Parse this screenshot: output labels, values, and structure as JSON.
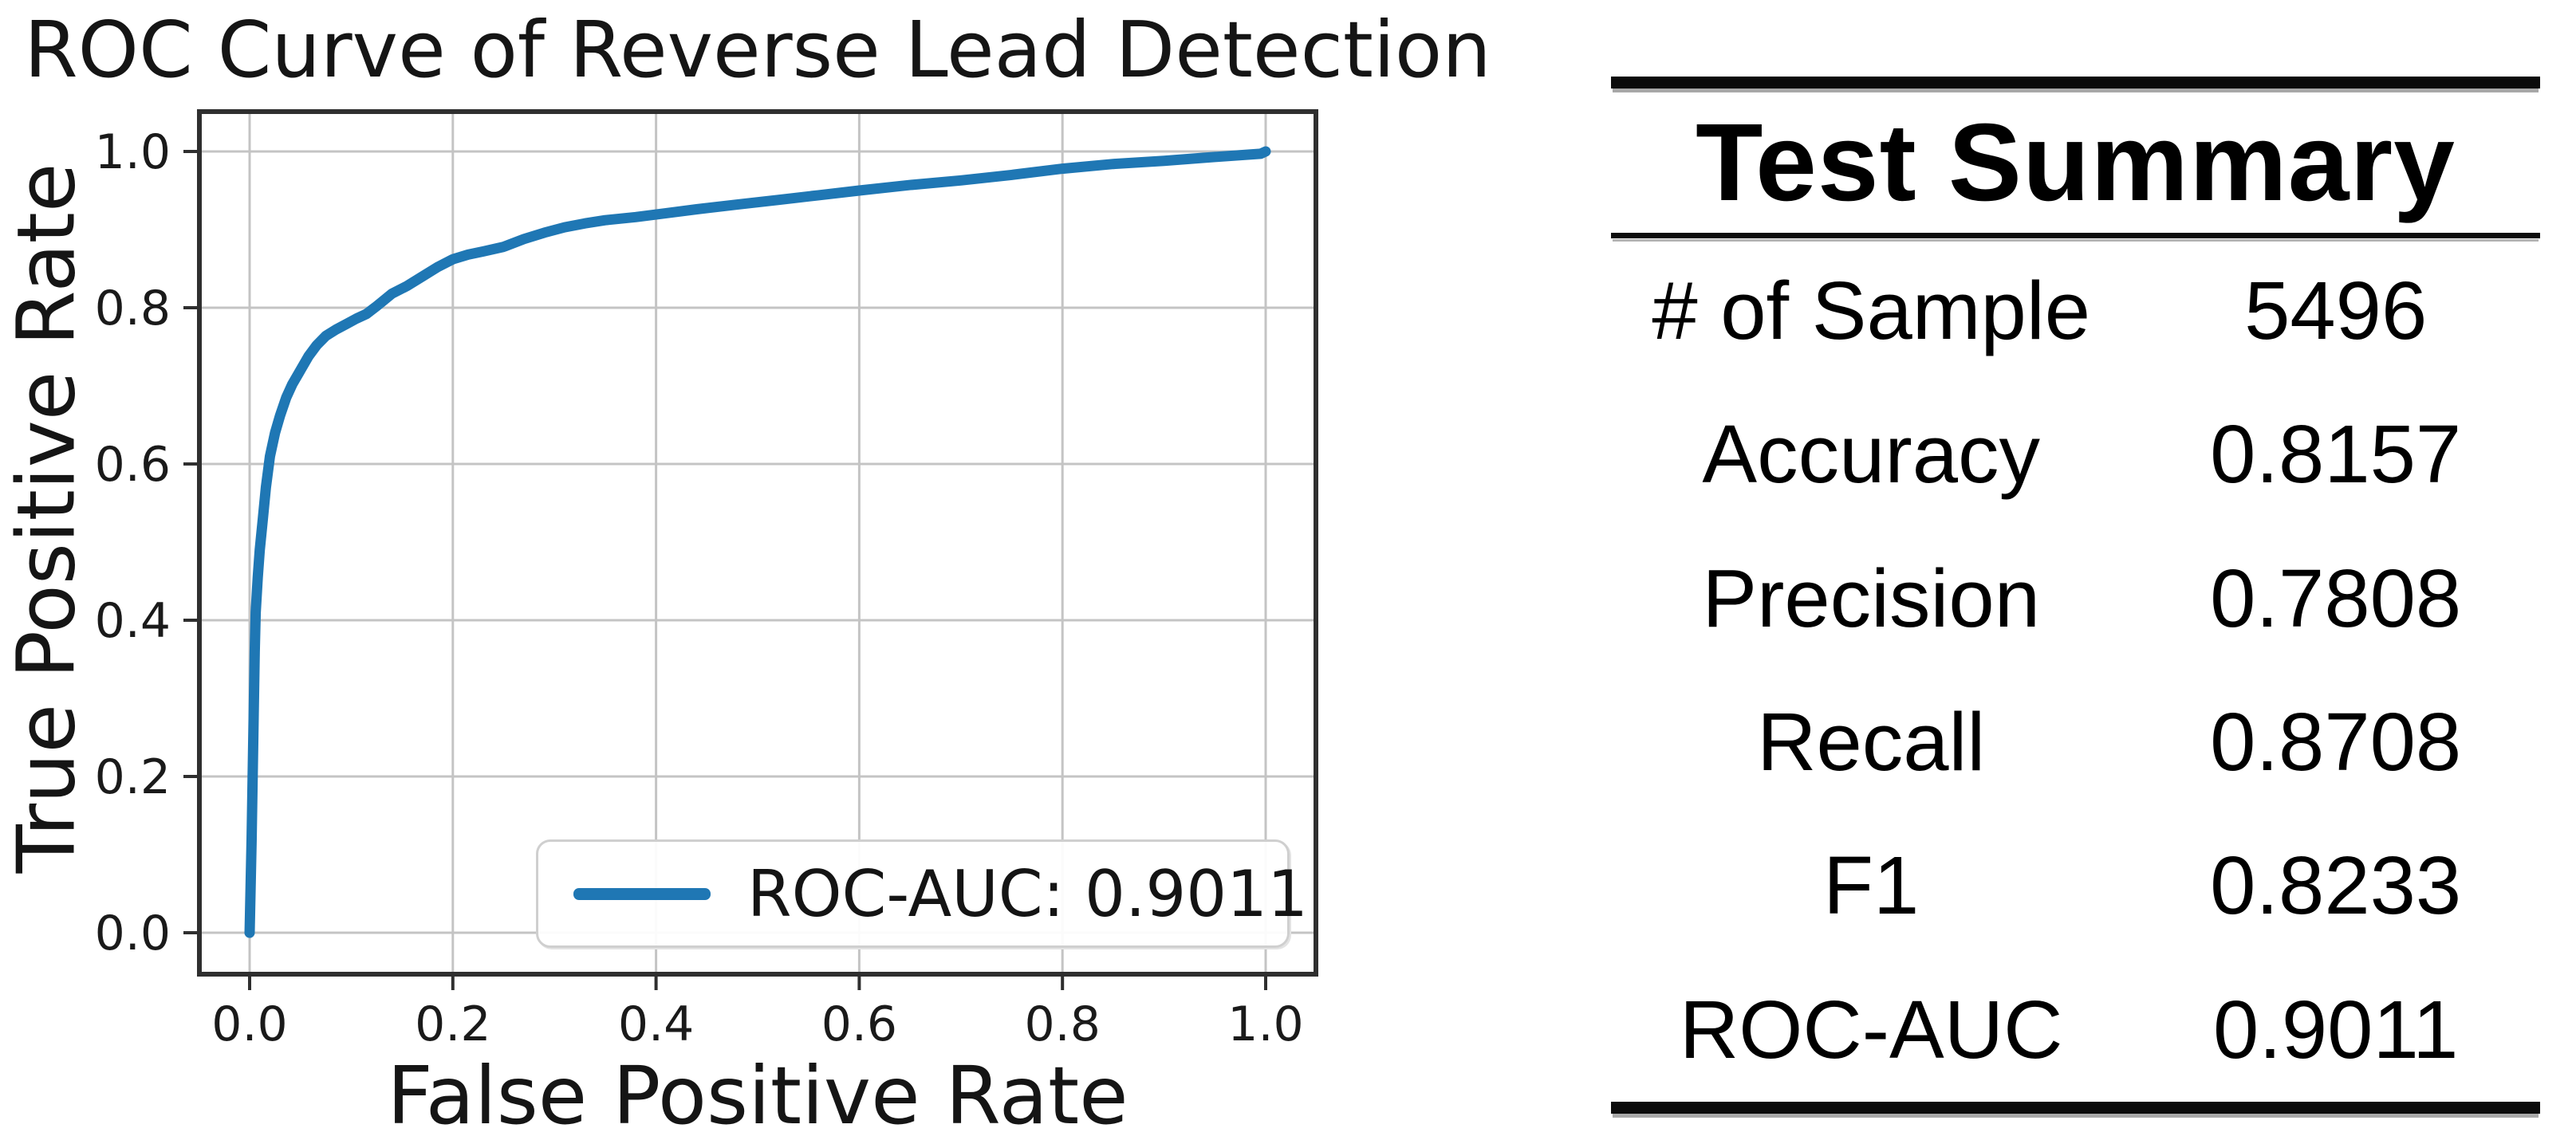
{
  "chart_data": {
    "type": "line",
    "title": "ROC Curve of Reverse Lead Detection",
    "xlabel": "False Positive Rate",
    "ylabel": "True Positive Rate",
    "xlim": [
      -0.05,
      1.05
    ],
    "ylim": [
      -0.05,
      1.05
    ],
    "grid": true,
    "x_tick_labels": [
      "0.0",
      "0.2",
      "0.4",
      "0.6",
      "0.8",
      "1.0"
    ],
    "y_tick_labels": [
      "0.0",
      "0.2",
      "0.4",
      "0.6",
      "0.8",
      "1.0"
    ],
    "legend_position": "lower right",
    "legend_label": "ROC-AUC: 0.9011",
    "auc": 0.9011,
    "colors": {
      "curve": "#1f77b4",
      "grid": "#c4c4c4",
      "spine": "#2f2f2f",
      "text": "#151515"
    },
    "series": [
      {
        "name": "ROC-AUC: 0.9011",
        "color": "#1f77b4",
        "x": [
          0.0,
          0.002,
          0.004,
          0.005,
          0.006,
          0.008,
          0.01,
          0.013,
          0.016,
          0.02,
          0.025,
          0.03,
          0.036,
          0.042,
          0.05,
          0.058,
          0.066,
          0.075,
          0.085,
          0.095,
          0.105,
          0.115,
          0.125,
          0.14,
          0.155,
          0.17,
          0.185,
          0.2,
          0.215,
          0.23,
          0.25,
          0.27,
          0.29,
          0.31,
          0.33,
          0.35,
          0.38,
          0.41,
          0.44,
          0.48,
          0.52,
          0.56,
          0.6,
          0.65,
          0.7,
          0.75,
          0.8,
          0.85,
          0.9,
          0.95,
          0.995,
          1.0
        ],
        "y": [
          0.0,
          0.12,
          0.28,
          0.36,
          0.41,
          0.455,
          0.49,
          0.53,
          0.57,
          0.61,
          0.64,
          0.662,
          0.685,
          0.702,
          0.72,
          0.738,
          0.752,
          0.764,
          0.772,
          0.779,
          0.786,
          0.792,
          0.802,
          0.818,
          0.828,
          0.84,
          0.852,
          0.862,
          0.868,
          0.872,
          0.878,
          0.888,
          0.896,
          0.903,
          0.908,
          0.912,
          0.916,
          0.921,
          0.926,
          0.932,
          0.938,
          0.944,
          0.95,
          0.957,
          0.963,
          0.97,
          0.978,
          0.984,
          0.988,
          0.993,
          0.997,
          1.0
        ]
      }
    ]
  },
  "summary_table": {
    "title": "Test Summary",
    "rows": [
      {
        "label": "# of Sample",
        "value": "5496"
      },
      {
        "label": "Accuracy",
        "value": "0.8157"
      },
      {
        "label": "Precision",
        "value": "0.7808"
      },
      {
        "label": "Recall",
        "value": "0.8708"
      },
      {
        "label": "F1",
        "value": "0.8233"
      },
      {
        "label": "ROC-AUC",
        "value": "0.9011"
      }
    ]
  }
}
